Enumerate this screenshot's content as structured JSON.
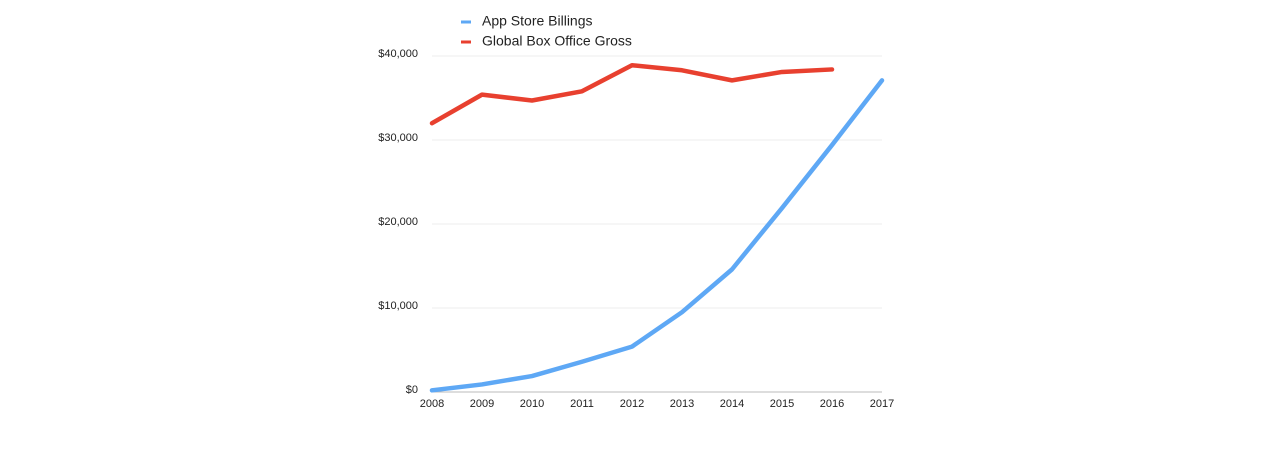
{
  "chart_data": {
    "type": "line",
    "categories": [
      "2008",
      "2009",
      "2010",
      "2011",
      "2012",
      "2013",
      "2014",
      "2015",
      "2016",
      "2017"
    ],
    "series": [
      {
        "name": "App Store Billings",
        "color": "#5ea8f5",
        "values": [
          200,
          900,
          1900,
          3600,
          5400,
          9500,
          14600,
          21900,
          29400,
          37100
        ]
      },
      {
        "name": "Global Box Office Gross",
        "color": "#e8402f",
        "values": [
          32000,
          35400,
          34700,
          35800,
          38900,
          38300,
          37100,
          38100,
          38400,
          null
        ]
      }
    ],
    "ylim": [
      0,
      40000
    ],
    "yticks": [
      {
        "value": 0,
        "label": "$0"
      },
      {
        "value": 10000,
        "label": "$10,000"
      },
      {
        "value": 20000,
        "label": "$20,000"
      },
      {
        "value": 30000,
        "label": "$30,000"
      },
      {
        "value": 40000,
        "label": "$40,000"
      }
    ],
    "grid": true
  }
}
